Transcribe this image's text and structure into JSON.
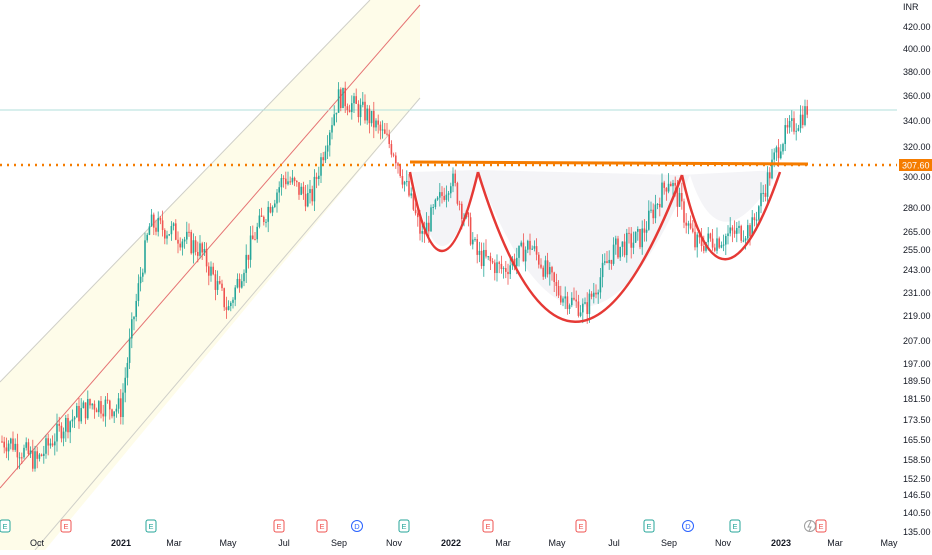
{
  "chart_data": {
    "type": "candlestick",
    "currency": "INR",
    "last_price_label": "307.60",
    "y_ticks": [
      "420.00",
      "400.00",
      "380.00",
      "360.00",
      "340.00",
      "320.00",
      "300.00",
      "280.00",
      "265.00",
      "255.00",
      "243.00",
      "231.00",
      "219.00",
      "207.00",
      "197.00",
      "189.50",
      "181.50",
      "173.50",
      "165.50",
      "158.50",
      "152.50",
      "146.50",
      "140.50",
      "135.00"
    ],
    "x_ticks": [
      "Oct",
      "2021",
      "Mar",
      "May",
      "Jul",
      "Sep",
      "Nov",
      "2022",
      "Mar",
      "May",
      "Jul",
      "Sep",
      "Nov",
      "2023",
      "Mar",
      "May"
    ],
    "event_markers": [
      "E",
      "E",
      "E",
      "E",
      "E",
      "D",
      "E",
      "E",
      "E",
      "E",
      "D",
      "E",
      "E"
    ],
    "support_level": 307.6,
    "price_path": [
      {
        "date": "2020-09",
        "close": 165
      },
      {
        "date": "2020-10",
        "close": 158
      },
      {
        "date": "2020-11",
        "close": 172
      },
      {
        "date": "2020-12",
        "close": 180
      },
      {
        "date": "2021-01",
        "close": 178
      },
      {
        "date": "2021-02",
        "close": 270
      },
      {
        "date": "2021-03",
        "close": 265
      },
      {
        "date": "2021-04",
        "close": 255
      },
      {
        "date": "2021-05",
        "close": 222
      },
      {
        "date": "2021-06",
        "close": 265
      },
      {
        "date": "2021-07",
        "close": 300
      },
      {
        "date": "2021-08",
        "close": 285
      },
      {
        "date": "2021-09",
        "close": 360
      },
      {
        "date": "2021-10",
        "close": 345
      },
      {
        "date": "2021-11",
        "close": 318
      },
      {
        "date": "2021-12",
        "close": 262
      },
      {
        "date": "2022-01",
        "close": 300
      },
      {
        "date": "2022-02",
        "close": 252
      },
      {
        "date": "2022-03",
        "close": 243
      },
      {
        "date": "2022-04",
        "close": 258
      },
      {
        "date": "2022-05",
        "close": 232
      },
      {
        "date": "2022-06",
        "close": 222
      },
      {
        "date": "2022-07",
        "close": 255
      },
      {
        "date": "2022-08",
        "close": 262
      },
      {
        "date": "2022-09",
        "close": 300
      },
      {
        "date": "2022-10",
        "close": 258
      },
      {
        "date": "2022-11",
        "close": 262
      },
      {
        "date": "2022-12",
        "close": 268
      },
      {
        "date": "2023-01",
        "close": 325
      },
      {
        "date": "2023-02",
        "close": 350
      }
    ],
    "colors": {
      "up": "#26a69a",
      "down": "#ef5350",
      "pattern": "#e53935",
      "support": "#f57c00",
      "channel_fill": "#fefce8",
      "cup_fill": "#f5f5f7"
    }
  }
}
